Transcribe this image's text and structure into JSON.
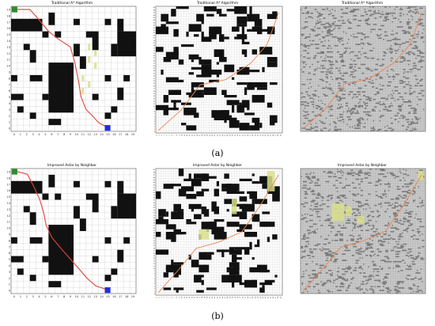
{
  "rows": [
    {
      "caption": "(a)",
      "panels": [
        {
          "title": "Traditional A* Algorithm",
          "grid_size": 20,
          "has_ticks": true
        },
        {
          "title": "Traditional A* Algorithm",
          "grid_size": 50,
          "has_ticks": true
        },
        {
          "title": "Traditional A* Algorithm",
          "grid_size": 100,
          "has_ticks": false
        }
      ]
    },
    {
      "caption": "(b)",
      "panels": [
        {
          "title": "Improved Astar by Neighbor",
          "grid_size": 20,
          "has_ticks": true
        },
        {
          "title": "Improved Astar by Neighbor",
          "grid_size": 50,
          "has_ticks": true
        },
        {
          "title": "Improved Astar by Neighbor",
          "grid_size": 100,
          "has_ticks": false
        }
      ]
    }
  ],
  "colors": {
    "obstacle": "#111111",
    "free_cell": "#ffffff",
    "grid_line": "#c8c8c8",
    "dense_background": "#bdbdbd",
    "path": "#e0443a",
    "explored_region": "#d9e08a",
    "start": "#2f8a2f",
    "goal": "#1f2fd6"
  },
  "legend_icons": [
    "start-marker-icon",
    "goal-marker-icon"
  ]
}
